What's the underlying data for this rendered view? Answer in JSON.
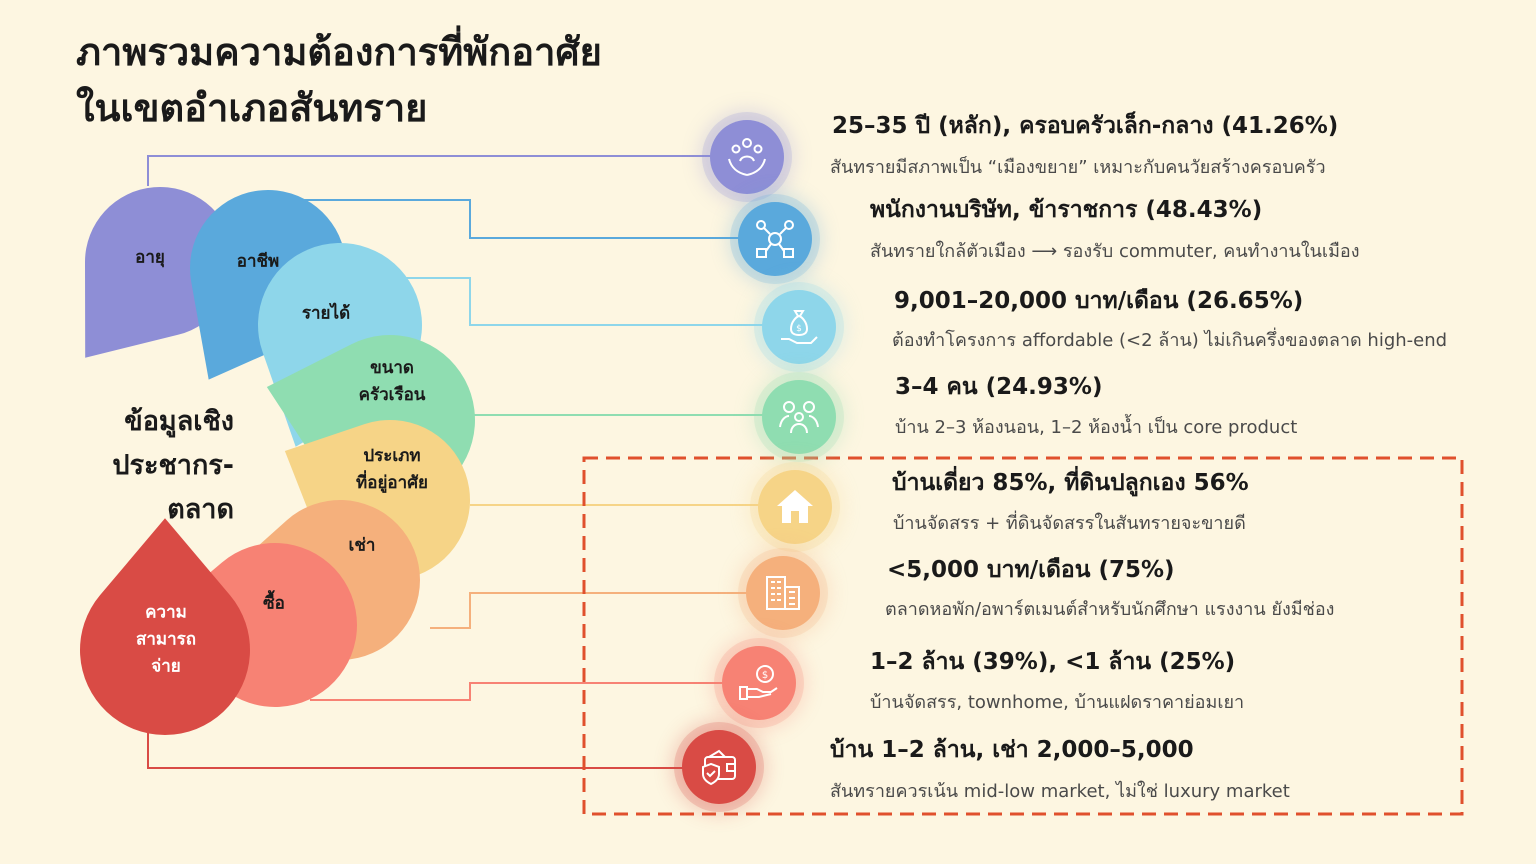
{
  "title": {
    "line1": "ภาพรวมความต้องการที่พักอาศัย",
    "line2": "ในเขตอำเภอสันทราย"
  },
  "center": {
    "line1": "ข้อมูลเชิง",
    "line2": "ประชากร-",
    "line3": "ตลาด"
  },
  "petals": [
    {
      "label1": "อายุ",
      "label2": "",
      "color": "#8e8ed6"
    },
    {
      "label1": "อาชีพ",
      "label2": "",
      "color": "#5aa9dc"
    },
    {
      "label1": "รายได้",
      "label2": "",
      "color": "#8ed6ea"
    },
    {
      "label1": "ขนาด",
      "label2": "ครัวเรือน",
      "color": "#8fddb1"
    },
    {
      "label1": "ประเภท",
      "label2": "ที่อยู่อาศัย",
      "color": "#f6d487"
    },
    {
      "label1": "เช่า",
      "label2": "",
      "color": "#f5b07c"
    },
    {
      "label1": "ซื้อ",
      "label2": "",
      "color": "#f78274"
    },
    {
      "label1": "ความ",
      "label2": "สามารถ",
      "label3": "จ่าย",
      "color": "#d94b45"
    }
  ],
  "items": [
    {
      "head": "25–35 ปี (หลัก), ครอบครัวเล็ก-กลาง (41.26%)",
      "sub": "สันทรายมีสภาพเป็น “เมืองขยาย” เหมาะกับคนวัยสร้างครอบครัว",
      "icon": "family-care-icon",
      "color": "#8e8ed6"
    },
    {
      "head": "พนักงานบริษัท, ข้าราชการ (48.43%)",
      "sub": "สันทรายใกล้ตัวเมือง ⟶ รองรับ commuter, คนทำงานในเมือง",
      "icon": "team-network-icon",
      "color": "#5aa9dc"
    },
    {
      "head": "9,001–20,000 บาท/เดือน (26.65%)",
      "sub": "ต้องทำโครงการ affordable (<2 ล้าน) ไม่เกินครึ่งของตลาด high-end",
      "icon": "money-bag-hand-icon",
      "color": "#8ed6ea"
    },
    {
      "head": "3–4 คน (24.93%)",
      "sub": "บ้าน 2–3 ห้องนอน, 1–2 ห้องน้ำ เป็น core product",
      "icon": "family-group-icon",
      "color": "#8fddb1"
    },
    {
      "head": "บ้านเดี่ยว 85%, ที่ดินปลูกเอง 56%",
      "sub": "บ้านจัดสรร + ที่ดินจัดสรรในสันทรายจะขายดี",
      "icon": "house-icon",
      "color": "#f6d487"
    },
    {
      "head": "<5,000 บาท/เดือน (75%)",
      "sub": "ตลาดหอพัก/อพาร์ตเมนต์สำหรับนักศึกษา แรงงาน ยังมีช่อง",
      "icon": "apartment-building-icon",
      "color": "#f5b07c"
    },
    {
      "head": "1–2 ล้าน (39%), <1 ล้าน (25%)",
      "sub": "บ้านจัดสรร, townhome, บ้านแฝดราคาย่อมเยา",
      "icon": "coin-hand-icon",
      "color": "#f78274"
    },
    {
      "head": "บ้าน 1–2 ล้าน, เช่า 2,000–5,000",
      "sub": "สันทรายควรเน้น mid-low market, ไม่ใช่ luxury market",
      "icon": "wallet-shield-icon",
      "color": "#d94b45"
    }
  ],
  "highlight_box_color": "#e0502d"
}
